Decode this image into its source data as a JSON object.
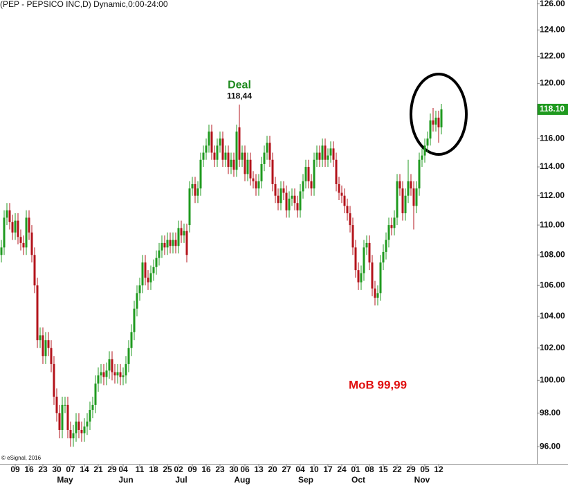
{
  "chart_data": {
    "type": "candlestick",
    "title": "(PEP - PEPSICO INC,D) Dynamic,0:00-24:00",
    "copyright": "© eSignal, 2016",
    "log_scale": true,
    "grid": false,
    "up_color": "#1f9a1f",
    "down_color": "#b3131b",
    "ylim": [
      95,
      126.3
    ],
    "yticks": [
      {
        "value": 96,
        "label": "96.00"
      },
      {
        "value": 98,
        "label": "98.00"
      },
      {
        "value": 100,
        "label": "100.00"
      },
      {
        "value": 102,
        "label": "102.00"
      },
      {
        "value": 104,
        "label": "104.00"
      },
      {
        "value": 106,
        "label": "106.00"
      },
      {
        "value": 108,
        "label": "108.00"
      },
      {
        "value": 110,
        "label": "110.00"
      },
      {
        "value": 112,
        "label": "112.00"
      },
      {
        "value": 114,
        "label": "114.00"
      },
      {
        "value": 116,
        "label": "116.00"
      },
      {
        "value": 118,
        "label": "118.00"
      },
      {
        "value": 120,
        "label": "120.00"
      },
      {
        "value": 122,
        "label": "122.00"
      },
      {
        "value": 124,
        "label": "124.00"
      },
      {
        "value": 126,
        "label": "126.00"
      }
    ],
    "last_price": {
      "value": 118.1,
      "label": "118.10"
    },
    "categories": [
      null,
      null,
      null,
      null,
      null,
      "09",
      null,
      null,
      null,
      null,
      "16",
      null,
      null,
      null,
      null,
      "23",
      null,
      null,
      null,
      null,
      "30",
      null,
      null,
      null,
      null,
      "07",
      null,
      null,
      null,
      null,
      "14",
      null,
      null,
      null,
      null,
      "21",
      null,
      null,
      null,
      null,
      "29",
      null,
      null,
      null,
      "04",
      null,
      null,
      null,
      null,
      null,
      "11",
      null,
      null,
      null,
      null,
      "18",
      null,
      null,
      null,
      null,
      "25",
      null,
      null,
      null,
      "02",
      null,
      null,
      null,
      null,
      "09",
      null,
      null,
      null,
      null,
      "16",
      null,
      null,
      null,
      null,
      "23",
      null,
      null,
      null,
      null,
      "30",
      null,
      null,
      null,
      "06",
      null,
      null,
      null,
      null,
      "13",
      null,
      null,
      null,
      null,
      "20",
      null,
      null,
      null,
      null,
      "27",
      null,
      null,
      null,
      null,
      "04",
      null,
      null,
      null,
      null,
      "10",
      null,
      null,
      null,
      null,
      "17",
      null,
      null,
      null,
      null,
      "24",
      null,
      null,
      null,
      null,
      "01",
      null,
      null,
      null,
      null,
      "08",
      null,
      null,
      null,
      null,
      "15",
      null,
      null,
      null,
      null,
      "22",
      null,
      null,
      null,
      null,
      "29",
      null,
      null,
      null,
      null,
      "05",
      null,
      null,
      null,
      null,
      "12",
      null
    ],
    "month_ticks": [
      {
        "value": 23,
        "label": "May"
      },
      {
        "value": 45,
        "label": "Jun"
      },
      {
        "value": 65,
        "label": "Jul"
      },
      {
        "value": 87,
        "label": "Aug"
      },
      {
        "value": 110,
        "label": "Sep"
      },
      {
        "value": 129,
        "label": "Oct"
      },
      {
        "value": 152,
        "label": "Nov"
      }
    ],
    "open": [
      108.0,
      108.5,
      110.5,
      111,
      110.2,
      109.5,
      110.3,
      109.2,
      108.8,
      108.5,
      110.5,
      109.5,
      108.0,
      106.0,
      102.5,
      102.8,
      101.5,
      102.5,
      102.0,
      101.0,
      99.0,
      98.0,
      97.0,
      98.5,
      98.5,
      97.0,
      96.5,
      96.8,
      97.5,
      97.0,
      96.8,
      97.2,
      97.5,
      98.2,
      98.5,
      99.8,
      100.3,
      100.5,
      100.2,
      100.6,
      101.3,
      100.5,
      100.3,
      100.5,
      100.2,
      100.3,
      101.0,
      102.0,
      103.0,
      104.5,
      105.5,
      106.0,
      107.5,
      106.5,
      106.2,
      106.8,
      107.2,
      107.8,
      108.3,
      108.8,
      108.5,
      109.0,
      108.6,
      109.0,
      108.6,
      109.8,
      109.3,
      109.6,
      110.0,
      112.5,
      112.8,
      112.0,
      112.5,
      114.5,
      115.0,
      115.5,
      116.5,
      115.0,
      114.5,
      115.5,
      116.0,
      114.5,
      115.0,
      114.0,
      114.5,
      113.8,
      116.8,
      114.5,
      115.0,
      113.5,
      114.5,
      113.2,
      113.0,
      112.5,
      113.0,
      114.2,
      115.0,
      115.7,
      114.5,
      112.8,
      112.0,
      111.5,
      112.5,
      112.2,
      111.0,
      111.8,
      112.0,
      111.5,
      111.0,
      112.3,
      113.0,
      114.0,
      113.0,
      112.5,
      114.5,
      115.0,
      114.5,
      115.5,
      114.5,
      114.8,
      115.3,
      114.5,
      112.8,
      112.2,
      112.0,
      111.3,
      110.8,
      110.0,
      108.5,
      107.0,
      106.2,
      106.8,
      108.5,
      108.8,
      107.5,
      105.8,
      105.2,
      105.5,
      107.5,
      108.2,
      109.0,
      110.0,
      109.8,
      110.5,
      113.0,
      112.5,
      110.8,
      112.0,
      113.0,
      112.5,
      111.3,
      112.5,
      114.5,
      114.8,
      115.5,
      116.0,
      117.3,
      117.0,
      117.5,
      116.8
    ],
    "high": [
      109.0,
      111.0,
      111.5,
      111.5,
      110.7,
      110.8,
      110.8,
      109.7,
      109.3,
      111.0,
      111.0,
      110.0,
      108.5,
      106.5,
      103.3,
      103.3,
      103.0,
      103.0,
      102.5,
      101.5,
      99.5,
      98.5,
      99.0,
      99.0,
      99.0,
      97.5,
      97.3,
      98.0,
      98.0,
      97.5,
      97.7,
      98.0,
      98.7,
      99.0,
      100.3,
      100.8,
      101.0,
      101.0,
      101.1,
      101.8,
      101.8,
      101.0,
      101.0,
      101.0,
      100.8,
      101.5,
      102.5,
      103.5,
      105.0,
      106.0,
      106.5,
      108.0,
      108.0,
      107.0,
      107.3,
      107.7,
      108.3,
      108.8,
      109.3,
      109.3,
      109.5,
      109.5,
      109.5,
      109.5,
      110.3,
      110.3,
      110.1,
      110.1,
      113.0,
      113.3,
      113.3,
      113.0,
      115.0,
      115.5,
      116.0,
      117.0,
      117.0,
      115.5,
      116.0,
      116.5,
      116.5,
      115.5,
      115.5,
      115.0,
      115.0,
      117.0,
      118.44,
      115.5,
      115.5,
      115.0,
      115.0,
      113.7,
      113.5,
      113.5,
      114.7,
      115.5,
      116.2,
      116.2,
      115.0,
      113.3,
      112.5,
      113.0,
      113.0,
      112.7,
      112.3,
      112.5,
      112.5,
      112.0,
      112.8,
      113.5,
      114.5,
      114.5,
      113.5,
      115.0,
      115.5,
      115.5,
      116.0,
      116.0,
      115.3,
      115.8,
      115.8,
      115.0,
      113.3,
      112.7,
      112.5,
      111.8,
      111.3,
      110.5,
      109.0,
      107.5,
      107.3,
      109.0,
      109.3,
      109.3,
      108.0,
      106.3,
      106.0,
      108.0,
      108.7,
      109.5,
      110.5,
      110.5,
      111.0,
      113.5,
      113.5,
      113.0,
      112.5,
      114.5,
      113.5,
      113.0,
      113.0,
      115.0,
      115.3,
      116.0,
      116.5,
      117.8,
      118.2,
      118.0,
      118.0,
      118.5
    ],
    "low": [
      107.5,
      108.0,
      110.0,
      109.7,
      109.0,
      109.0,
      108.7,
      108.3,
      108.0,
      108.0,
      109.0,
      107.5,
      105.5,
      102.0,
      102.0,
      101.0,
      101.0,
      101.5,
      100.5,
      98.5,
      97.5,
      96.5,
      96.5,
      98.0,
      96.5,
      96.0,
      96.0,
      96.3,
      96.5,
      96.3,
      96.3,
      96.7,
      97.0,
      97.7,
      98.0,
      99.3,
      99.8,
      99.7,
      99.7,
      100.1,
      100.0,
      99.8,
      99.8,
      99.7,
      99.7,
      99.8,
      100.5,
      101.5,
      102.5,
      104.0,
      105.0,
      105.5,
      106.0,
      105.7,
      105.7,
      106.3,
      106.7,
      107.3,
      107.8,
      108.0,
      108.0,
      108.1,
      108.1,
      108.1,
      108.1,
      108.8,
      108.8,
      107.5,
      109.5,
      112.0,
      111.5,
      111.5,
      112.0,
      114.0,
      114.5,
      115.0,
      114.5,
      114.0,
      114.0,
      115.0,
      114.0,
      114.0,
      113.5,
      113.5,
      113.3,
      113.3,
      114.0,
      114.0,
      113.0,
      113.0,
      112.7,
      112.5,
      112.0,
      112.0,
      112.5,
      113.7,
      114.5,
      114.0,
      112.3,
      111.5,
      111.0,
      111.0,
      111.7,
      110.5,
      110.5,
      111.3,
      111.0,
      110.5,
      110.5,
      111.8,
      112.5,
      112.5,
      112.0,
      112.0,
      114.0,
      114.0,
      114.0,
      114.0,
      114.0,
      114.3,
      114.0,
      112.3,
      111.7,
      111.5,
      110.8,
      110.3,
      109.5,
      108.0,
      106.5,
      105.7,
      105.7,
      106.3,
      108.0,
      107.0,
      105.3,
      104.7,
      104.7,
      105.0,
      107.0,
      107.7,
      108.5,
      109.3,
      109.3,
      110.0,
      112.0,
      110.3,
      110.3,
      111.5,
      112.0,
      109.7,
      110.8,
      112.0,
      114.0,
      114.3,
      115.0,
      115.5,
      116.5,
      116.5,
      115.7,
      116.3
    ],
    "close": [
      108.5,
      110.5,
      111,
      110.2,
      109.5,
      110.3,
      109.2,
      108.8,
      108.5,
      110.5,
      109.5,
      108.0,
      106.0,
      102.5,
      102.8,
      101.5,
      102.5,
      102.0,
      101.0,
      99.0,
      98.0,
      97.0,
      98.5,
      98.5,
      97.0,
      96.5,
      96.8,
      97.5,
      97.0,
      96.8,
      97.2,
      97.5,
      98.2,
      98.5,
      99.8,
      100.3,
      100.5,
      100.2,
      100.6,
      101.3,
      100.5,
      100.3,
      100.5,
      100.2,
      100.3,
      101.0,
      102.0,
      103.0,
      104.5,
      105.5,
      106.0,
      107.5,
      106.5,
      106.2,
      106.8,
      107.2,
      107.8,
      108.3,
      108.8,
      108.5,
      109.0,
      108.6,
      109.0,
      108.6,
      109.8,
      109.3,
      109.6,
      108.0,
      112.5,
      112.8,
      112.0,
      112.5,
      114.5,
      115.0,
      115.5,
      116.5,
      115.0,
      114.5,
      115.5,
      116.0,
      114.5,
      115.0,
      114.0,
      114.5,
      113.8,
      116.5,
      114.5,
      115.0,
      113.5,
      114.5,
      113.2,
      113.0,
      112.5,
      113.0,
      114.2,
      115.0,
      115.7,
      114.5,
      112.8,
      112.0,
      111.5,
      112.5,
      112.2,
      111.0,
      111.8,
      112.0,
      111.5,
      111.0,
      112.3,
      113.0,
      114.0,
      113.0,
      112.5,
      114.5,
      115.0,
      114.5,
      115.5,
      114.5,
      114.8,
      115.3,
      114.5,
      112.8,
      112.2,
      112.0,
      111.3,
      110.8,
      110.0,
      108.5,
      107.0,
      106.2,
      106.8,
      108.5,
      108.8,
      107.5,
      105.8,
      105.2,
      105.5,
      107.5,
      108.2,
      109.0,
      110.0,
      109.8,
      110.5,
      113.0,
      112.5,
      110.8,
      112.0,
      113.0,
      112.5,
      111.3,
      112.5,
      114.5,
      114.8,
      115.5,
      116.0,
      117.3,
      117.0,
      117.5,
      116.8,
      118.1
    ],
    "annotations": [
      {
        "text": "Deal",
        "value": 118.44,
        "label": "118,44",
        "index": 86,
        "color": "#1f8a1f"
      },
      {
        "text": "MoB 99,99",
        "color": "#e01010"
      }
    ]
  }
}
